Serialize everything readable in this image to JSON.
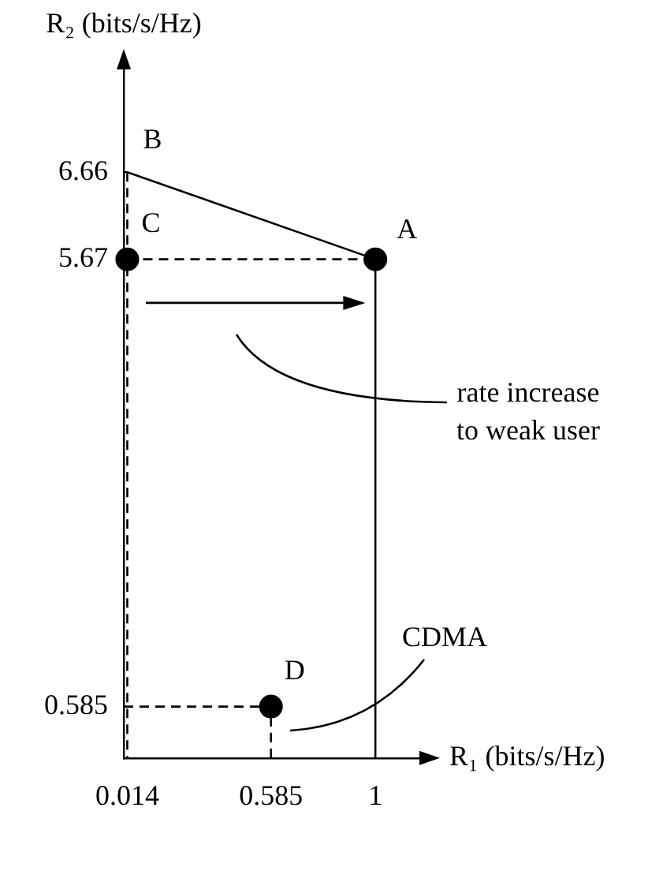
{
  "chart_data": {
    "type": "line",
    "xlabel": "R₁ (bits/s/Hz)",
    "ylabel": "R₂ (bits/s/Hz)",
    "xlim": [
      0,
      1.2
    ],
    "ylim": [
      0,
      7.9
    ],
    "xticks": [
      0.014,
      0.585,
      1
    ],
    "yticks": [
      0.585,
      5.67,
      6.66
    ],
    "series": [
      {
        "type": "line",
        "color": "#000000",
        "x": [
          0,
          0.014,
          1,
          1
        ],
        "values": [
          6.66,
          6.66,
          5.67,
          0
        ],
        "line_style": "solid",
        "marker": "none"
      },
      {
        "type": "line",
        "color": "#000000",
        "x": [
          0.014,
          0.014
        ],
        "values": [
          6.66,
          0
        ],
        "line_style": "dashed",
        "marker": "none"
      },
      {
        "type": "line",
        "color": "#000000",
        "x": [
          0.014,
          1
        ],
        "values": [
          5.67,
          5.67
        ],
        "line_style": "dashed",
        "marker": "none"
      },
      {
        "type": "line",
        "color": "#000000",
        "x": [
          0,
          0.585,
          0.585
        ],
        "values": [
          0.585,
          0.585,
          0
        ],
        "line_style": "dashed",
        "marker": "none"
      },
      {
        "type": "scatter",
        "color": "#000000",
        "x": [
          0.014,
          1,
          0.585
        ],
        "values": [
          5.67,
          5.67,
          0.585
        ],
        "marker": "circle"
      }
    ],
    "annotations": [
      {
        "text": "A",
        "x": 1,
        "y": 5.67
      },
      {
        "text": "B",
        "x": 0.014,
        "y": 6.66
      },
      {
        "text": "C",
        "x": 0.014,
        "y": 5.67
      },
      {
        "text": "D",
        "x": 0.585,
        "y": 0.585
      },
      "rate increase to weak user",
      "CDMA"
    ]
  }
}
